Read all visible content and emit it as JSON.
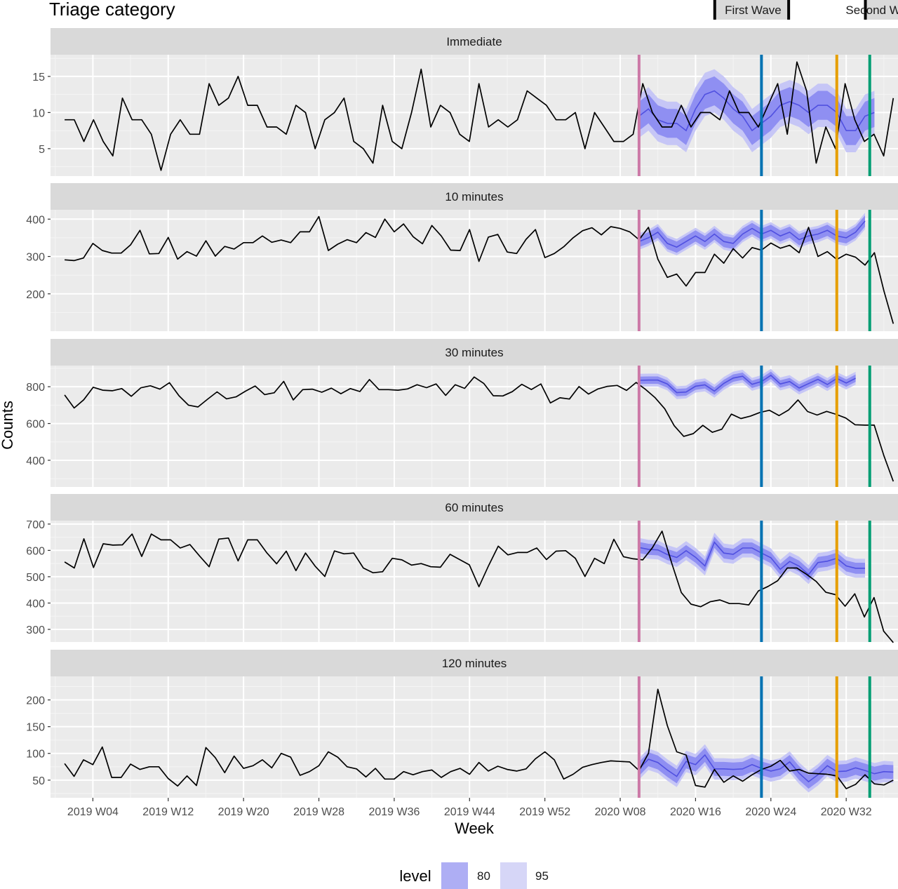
{
  "chart_data": {
    "type": "line",
    "title": "Triage category",
    "xlabel": "Week",
    "ylabel": "Counts",
    "x_week_ticks": [
      4,
      12,
      20,
      28,
      36,
      44,
      52,
      60,
      68,
      76,
      84
    ],
    "x_tick_labels": [
      "2019 W04",
      "2019 W12",
      "2019 W20",
      "2019 W28",
      "2019 W36",
      "2019 W44",
      "2019 W52",
      "2020 W08",
      "2020 W16",
      "2020 W24",
      "2020 W32"
    ],
    "x_range": [
      -0.5,
      89.5
    ],
    "grid": true,
    "wave_labels": [
      {
        "label": "First Wave",
        "start": 70,
        "end": 78
      },
      {
        "label": "Second Wave",
        "start": 86,
        "end": 92
      }
    ],
    "vlines": [
      {
        "week": 62,
        "color": "#CC79A7"
      },
      {
        "week": 75,
        "color": "#0072B2"
      },
      {
        "week": 83,
        "color": "#E69F00"
      },
      {
        "week": 86.5,
        "color": "#009E73"
      }
    ],
    "forecast_start": 62,
    "forecast_colors": {
      "line": "#5050e0",
      "band80": "#8f8ff2",
      "band95": "#c6c6f6"
    },
    "legend": {
      "title": "level",
      "items": [
        {
          "label": "80",
          "color": "#aeaef4"
        },
        {
          "label": "95",
          "color": "#d6d6f7"
        }
      ]
    },
    "panels": [
      {
        "name": "Immediate",
        "ylim": [
          1.2,
          18.0
        ],
        "yticks": [
          5,
          10,
          15
        ],
        "observed": [
          9,
          9,
          6,
          9,
          6,
          4,
          12,
          9,
          9,
          7,
          2,
          7,
          9,
          7,
          7,
          14,
          11,
          12,
          15,
          11,
          11,
          8,
          8,
          7,
          11,
          10,
          5,
          9,
          10,
          12,
          6,
          5,
          3,
          11,
          6,
          5,
          10,
          16,
          8,
          11,
          10,
          7,
          6,
          14,
          8,
          9,
          8,
          9,
          13,
          12,
          11,
          9,
          9,
          10,
          5,
          10,
          8,
          6,
          6,
          7,
          14,
          10,
          8,
          8,
          11,
          8,
          10,
          10,
          9,
          13,
          10,
          10,
          8,
          11,
          14,
          7,
          17,
          13,
          3,
          8,
          5,
          14,
          9,
          6,
          7,
          4,
          12
        ],
        "forecast": [
          9.5,
          10.5,
          9,
          8.5,
          8.5,
          7.5,
          10.5,
          12.5,
          13,
          12,
          10.5,
          9.5,
          7.5,
          8.5,
          9.5,
          11,
          11.5,
          11,
          10,
          11,
          11,
          10,
          7.5,
          7.5,
          9.5,
          10
        ],
        "lo80": [
          7.5,
          8.5,
          7,
          6.5,
          6.5,
          5.5,
          8.5,
          10.5,
          11,
          10,
          8.5,
          7.5,
          5.5,
          6.5,
          7.5,
          9,
          9.5,
          9,
          8,
          9,
          9,
          8,
          5.5,
          5.5,
          7.5,
          8
        ],
        "hi80": [
          11.5,
          12.5,
          11,
          10.5,
          10.5,
          9.5,
          12.5,
          14.5,
          15,
          14,
          12.5,
          11.5,
          9.5,
          10.5,
          11.5,
          13,
          13.5,
          13,
          12,
          13,
          13,
          12,
          9.5,
          9.5,
          11.5,
          12
        ],
        "lo95": [
          6.5,
          7.5,
          6,
          5.5,
          5.5,
          4.5,
          7.5,
          9.5,
          10,
          9,
          7.5,
          6.5,
          4.5,
          5.5,
          6.5,
          8,
          8.5,
          8,
          7,
          8,
          8,
          7,
          4.5,
          4.5,
          6.5,
          7
        ],
        "hi95": [
          12.5,
          13.5,
          12,
          11.5,
          11.5,
          10.5,
          13.5,
          15.5,
          16,
          15,
          13.5,
          12.5,
          10.5,
          11.5,
          12.5,
          14,
          14.5,
          14,
          13,
          14,
          14,
          13,
          10.5,
          10.5,
          12.5,
          13
        ]
      },
      {
        "name": "10 minutes",
        "ylim": [
          100,
          425
        ],
        "yticks": [
          200,
          300,
          400
        ],
        "observed": [
          291,
          289,
          296,
          335,
          316,
          309,
          309,
          331,
          370,
          307,
          308,
          351,
          293,
          313,
          301,
          342,
          301,
          327,
          320,
          337,
          337,
          355,
          338,
          344,
          337,
          366,
          366,
          407,
          316,
          333,
          345,
          337,
          364,
          351,
          400,
          366,
          387,
          353,
          334,
          383,
          355,
          317,
          316,
          372,
          287,
          352,
          359,
          312,
          308,
          346,
          372,
          297,
          308,
          326,
          350,
          369,
          377,
          358,
          380,
          375,
          366,
          345,
          378,
          293,
          244,
          253,
          221,
          257,
          257,
          306,
          282,
          321,
          296,
          324,
          317,
          336,
          322,
          330,
          310,
          378,
          300,
          313,
          292,
          306,
          298,
          277,
          310,
          208,
          120
        ],
        "forecast": [
          340,
          350,
          365,
          335,
          325,
          340,
          355,
          340,
          360,
          340,
          335,
          360,
          375,
          360,
          370,
          355,
          365,
          345,
          355,
          360,
          370,
          355,
          350,
          365,
          395
        ],
        "lo80": [
          325,
          335,
          350,
          320,
          310,
          325,
          340,
          325,
          345,
          325,
          320,
          345,
          360,
          345,
          355,
          340,
          350,
          330,
          340,
          345,
          355,
          340,
          335,
          350,
          380
        ],
        "hi80": [
          355,
          365,
          380,
          350,
          340,
          355,
          370,
          355,
          375,
          355,
          350,
          375,
          390,
          375,
          385,
          370,
          380,
          360,
          370,
          375,
          385,
          370,
          365,
          380,
          410
        ],
        "lo95": [
          318,
          328,
          343,
          313,
          303,
          318,
          333,
          318,
          338,
          318,
          313,
          338,
          353,
          338,
          348,
          333,
          343,
          323,
          333,
          338,
          348,
          333,
          328,
          343,
          373
        ],
        "hi95": [
          362,
          372,
          387,
          357,
          347,
          362,
          377,
          362,
          382,
          362,
          357,
          382,
          397,
          382,
          392,
          377,
          387,
          367,
          377,
          382,
          392,
          377,
          372,
          387,
          417
        ]
      },
      {
        "name": "30 minutes",
        "ylim": [
          255,
          915
        ],
        "yticks": [
          400,
          600,
          800
        ],
        "observed": [
          755,
          684,
          729,
          797,
          781,
          778,
          790,
          748,
          794,
          805,
          787,
          822,
          751,
          700,
          690,
          732,
          772,
          734,
          745,
          776,
          804,
          757,
          767,
          829,
          728,
          784,
          787,
          770,
          792,
          762,
          790,
          774,
          839,
          784,
          784,
          781,
          788,
          811,
          795,
          815,
          753,
          811,
          791,
          853,
          818,
          751,
          750,
          773,
          813,
          785,
          815,
          712,
          740,
          733,
          801,
          760,
          788,
          802,
          807,
          780,
          823,
          785,
          740,
          680,
          588,
          530,
          545,
          590,
          552,
          569,
          651,
          627,
          640,
          660,
          672,
          643,
          673,
          728,
          665,
          646,
          666,
          650,
          630,
          593,
          591,
          591,
          427,
          285
        ],
        "forecast": [
          835,
          836,
          836,
          815,
          768,
          771,
          803,
          810,
          776,
          818,
          847,
          857,
          813,
          828,
          862,
          815,
          828,
          793,
          817,
          840,
          812,
          845,
          820,
          846
        ],
        "lo80": [
          815,
          816,
          816,
          795,
          748,
          751,
          783,
          790,
          756,
          798,
          827,
          837,
          793,
          808,
          842,
          795,
          808,
          773,
          797,
          820,
          792,
          825,
          800,
          826
        ],
        "hi80": [
          855,
          856,
          856,
          835,
          788,
          791,
          823,
          830,
          796,
          838,
          867,
          877,
          833,
          848,
          882,
          835,
          848,
          813,
          837,
          860,
          832,
          865,
          840,
          866
        ],
        "lo95": [
          800,
          801,
          801,
          780,
          733,
          736,
          768,
          775,
          741,
          783,
          812,
          822,
          778,
          793,
          827,
          780,
          793,
          758,
          782,
          805,
          777,
          810,
          785,
          811
        ],
        "hi95": [
          870,
          871,
          871,
          850,
          803,
          806,
          838,
          845,
          811,
          853,
          882,
          892,
          848,
          863,
          897,
          850,
          863,
          828,
          852,
          875,
          847,
          880,
          855,
          881
        ]
      },
      {
        "name": "60 minutes",
        "ylim": [
          252,
          713
        ],
        "yticks": [
          300,
          400,
          500,
          600,
          700
        ],
        "observed": [
          556,
          533,
          644,
          535,
          625,
          620,
          621,
          662,
          577,
          662,
          640,
          640,
          609,
          622,
          579,
          538,
          643,
          647,
          560,
          640,
          640,
          590,
          549,
          597,
          523,
          590,
          540,
          501,
          598,
          587,
          590,
          533,
          515,
          519,
          570,
          564,
          544,
          550,
          538,
          536,
          585,
          565,
          545,
          462,
          542,
          616,
          583,
          592,
          592,
          609,
          565,
          597,
          599,
          570,
          501,
          570,
          550,
          642,
          576,
          568,
          564,
          610,
          673,
          552,
          440,
          396,
          386,
          405,
          412,
          398,
          398,
          393,
          446,
          463,
          485,
          533,
          533,
          509,
          482,
          441,
          432,
          388,
          435,
          347,
          421,
          293,
          250
        ],
        "forecast": [
          611,
          604,
          602,
          584,
          573,
          599,
          574,
          541,
          631,
          590,
          585,
          609,
          609,
          590,
          572,
          528,
          558,
          540,
          508,
          554,
          559,
          570,
          541,
          532,
          532
        ],
        "lo80": [
          590,
          583,
          581,
          563,
          552,
          578,
          553,
          520,
          610,
          569,
          564,
          588,
          588,
          569,
          551,
          507,
          537,
          519,
          487,
          533,
          538,
          549,
          520,
          511,
          511
        ],
        "hi80": [
          632,
          625,
          623,
          605,
          594,
          620,
          595,
          562,
          652,
          611,
          606,
          630,
          630,
          611,
          593,
          549,
          579,
          561,
          529,
          575,
          580,
          591,
          562,
          553,
          553
        ],
        "lo95": [
          575,
          568,
          566,
          548,
          537,
          563,
          538,
          505,
          595,
          554,
          549,
          573,
          573,
          554,
          536,
          492,
          522,
          504,
          472,
          518,
          523,
          534,
          505,
          496,
          496
        ],
        "hi95": [
          647,
          640,
          638,
          620,
          609,
          635,
          610,
          577,
          667,
          626,
          621,
          645,
          645,
          626,
          608,
          564,
          594,
          576,
          544,
          590,
          595,
          606,
          577,
          568,
          568
        ]
      },
      {
        "name": "120 minutes",
        "ylim": [
          17,
          244
        ],
        "yticks": [
          50,
          100,
          150,
          200
        ],
        "observed": [
          81,
          57,
          88,
          79,
          112,
          55,
          55,
          80,
          70,
          75,
          75,
          53,
          39,
          58,
          40,
          111,
          92,
          64,
          95,
          72,
          77,
          88,
          73,
          100,
          93,
          59,
          66,
          77,
          103,
          93,
          75,
          71,
          56,
          72,
          52,
          52,
          66,
          60,
          66,
          69,
          55,
          66,
          72,
          61,
          83,
          67,
          76,
          70,
          67,
          71,
          90,
          103,
          88,
          52,
          61,
          74,
          79,
          83,
          86,
          85,
          84,
          68,
          100,
          220,
          152,
          103,
          97,
          40,
          37,
          70,
          46,
          58,
          48,
          60,
          70,
          76,
          87,
          67,
          70,
          63,
          62,
          61,
          58,
          34,
          42,
          60,
          43,
          41,
          50
        ],
        "forecast": [
          71,
          89,
          83,
          69,
          57,
          85,
          79,
          97,
          71,
          71,
          70,
          71,
          79,
          72,
          67,
          71,
          84,
          63,
          47,
          60,
          77,
          66,
          67,
          73,
          68,
          62,
          66,
          65
        ],
        "lo80": [
          58,
          76,
          70,
          56,
          44,
          72,
          66,
          84,
          58,
          58,
          57,
          58,
          66,
          59,
          54,
          58,
          71,
          50,
          34,
          47,
          64,
          53,
          54,
          60,
          55,
          49,
          53,
          52
        ],
        "hi80": [
          84,
          102,
          96,
          82,
          70,
          98,
          92,
          110,
          84,
          84,
          83,
          84,
          92,
          85,
          80,
          84,
          97,
          76,
          60,
          73,
          90,
          79,
          80,
          86,
          81,
          75,
          79,
          78
        ],
        "lo95": [
          51,
          69,
          63,
          49,
          37,
          65,
          59,
          77,
          51,
          51,
          50,
          51,
          59,
          52,
          47,
          51,
          64,
          43,
          27,
          40,
          57,
          46,
          47,
          53,
          48,
          42,
          46,
          45
        ],
        "hi95": [
          91,
          109,
          103,
          89,
          77,
          105,
          99,
          117,
          91,
          91,
          90,
          91,
          99,
          92,
          87,
          91,
          104,
          83,
          67,
          80,
          97,
          86,
          87,
          93,
          88,
          82,
          86,
          85
        ]
      }
    ]
  }
}
